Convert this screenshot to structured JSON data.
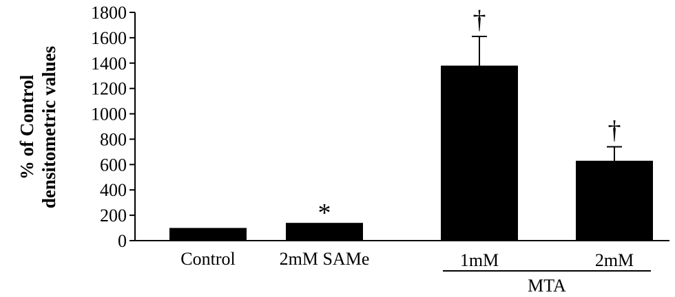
{
  "chart_data": {
    "type": "bar",
    "title": "",
    "xlabel": "",
    "ylabel_lines": [
      "% of Control",
      "densitometric values"
    ],
    "ylim": [
      0,
      1800
    ],
    "yticks": [
      0,
      200,
      400,
      600,
      800,
      1000,
      1200,
      1400,
      1600,
      1800
    ],
    "grid": false,
    "legend": "none",
    "bar_color": "#000000",
    "categories": [
      "Control",
      "2mM SAMe",
      "1mM",
      "2mM"
    ],
    "values": [
      100,
      140,
      1380,
      630
    ],
    "error_bars": [
      0,
      0,
      230,
      110
    ],
    "annotations": [
      "",
      "*",
      "†",
      "†"
    ],
    "group_labels": [
      {
        "label": "MTA",
        "categories": [
          "1mM",
          "2mM"
        ]
      }
    ]
  }
}
